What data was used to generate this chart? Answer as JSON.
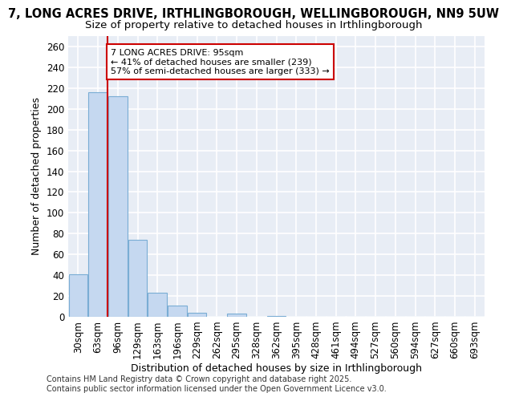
{
  "title_line1": "7, LONG ACRES DRIVE, IRTHLINGBOROUGH, WELLINGBOROUGH, NN9 5UW",
  "title_line2": "Size of property relative to detached houses in Irthlingborough",
  "xlabel": "Distribution of detached houses by size in Irthlingborough",
  "ylabel": "Number of detached properties",
  "categories": [
    "30sqm",
    "63sqm",
    "96sqm",
    "129sqm",
    "163sqm",
    "196sqm",
    "229sqm",
    "262sqm",
    "295sqm",
    "328sqm",
    "362sqm",
    "395sqm",
    "428sqm",
    "461sqm",
    "494sqm",
    "527sqm",
    "560sqm",
    "594sqm",
    "627sqm",
    "660sqm",
    "693sqm"
  ],
  "values": [
    41,
    216,
    212,
    74,
    23,
    11,
    4,
    0,
    3,
    0,
    1,
    0,
    0,
    0,
    0,
    0,
    0,
    0,
    0,
    0,
    0
  ],
  "bar_color": "#c5d8f0",
  "bar_edge_color": "#7aadd4",
  "annotation_text": "7 LONG ACRES DRIVE: 95sqm\n← 41% of detached houses are smaller (239)\n57% of semi-detached houses are larger (333) →",
  "annotation_box_color": "#ffffff",
  "annotation_box_edge": "#cc0000",
  "vline_color": "#cc0000",
  "background_color": "#e8edf5",
  "grid_color": "#ffffff",
  "footer_text": "Contains HM Land Registry data © Crown copyright and database right 2025.\nContains public sector information licensed under the Open Government Licence v3.0.",
  "ylim": [
    0,
    270
  ],
  "yticks": [
    0,
    20,
    40,
    60,
    80,
    100,
    120,
    140,
    160,
    180,
    200,
    220,
    240,
    260
  ],
  "title_fontsize": 10.5,
  "subtitle_fontsize": 9.5,
  "axis_label_fontsize": 9,
  "tick_fontsize": 8.5,
  "footer_fontsize": 7
}
